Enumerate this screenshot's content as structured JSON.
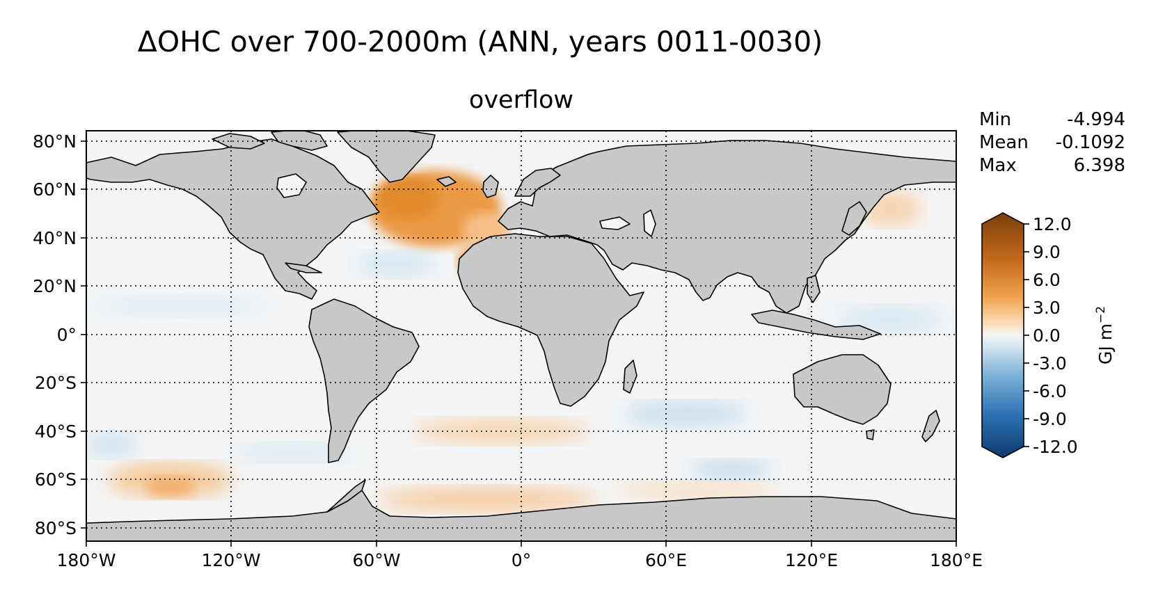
{
  "title": "ΔOHC over 700-2000m (ANN, years 0011-0030)",
  "subtitle": "overflow",
  "stats": [
    {
      "label": "Min",
      "value": "-4.994"
    },
    {
      "label": "Mean",
      "value": "-0.1092"
    },
    {
      "label": "Max",
      "value": "6.398"
    }
  ],
  "colorbar": {
    "label": "GJ m",
    "label_superscript": "−2",
    "ticks": [
      "12.0",
      "9.0",
      "6.0",
      "3.0",
      "0.0",
      "-3.0",
      "-6.0",
      "-9.0",
      "-12.0"
    ],
    "range": [
      -12,
      12
    ]
  },
  "axes": {
    "lat_ticks": [
      "80°N",
      "60°N",
      "40°N",
      "20°N",
      "0°",
      "20°S",
      "40°S",
      "60°S",
      "80°S"
    ],
    "lon_ticks": [
      "180°W",
      "120°W",
      "60°W",
      "0°",
      "60°E",
      "120°E",
      "180°E"
    ]
  },
  "colors": {
    "land": "#c8c8c8",
    "ocean_neutral": "#f3f5f6",
    "warm": "#f0a04b",
    "warm_strong": "#e08a2a",
    "cool": "#cfe3ef"
  }
}
